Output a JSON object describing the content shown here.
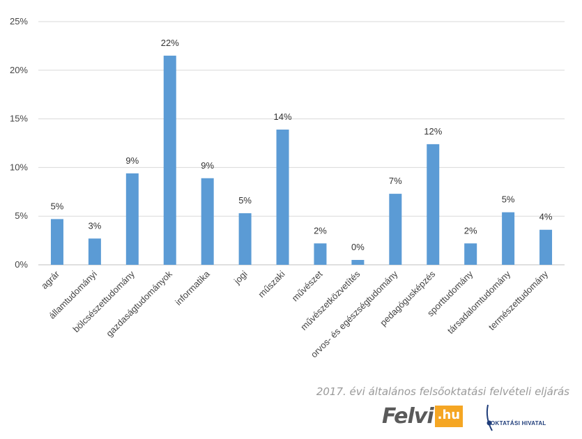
{
  "chart_data": {
    "type": "bar",
    "categories": [
      "agrár",
      "államtudományi",
      "bölcsészettudomány",
      "gazdaságtudományok",
      "informatika",
      "jogi",
      "műszaki",
      "művészet",
      "művészetközvetítés",
      "orvos- és egészségtudomány",
      "pedagógusképzés",
      "sporttudomány",
      "társadalomtudomány",
      "természettudomány"
    ],
    "values": [
      4.7,
      2.7,
      9.4,
      21.5,
      8.9,
      5.3,
      13.9,
      2.2,
      0.5,
      7.3,
      12.4,
      2.2,
      5.4,
      3.6
    ],
    "data_labels": [
      "5%",
      "3%",
      "9%",
      "22%",
      "9%",
      "5%",
      "14%",
      "2%",
      "0%",
      "7%",
      "12%",
      "2%",
      "5%",
      "4%"
    ],
    "y_ticks": [
      0,
      5,
      10,
      15,
      20,
      25
    ],
    "y_tick_labels": [
      "0%",
      "5%",
      "10%",
      "15%",
      "20%",
      "25%"
    ],
    "ylim": [
      0,
      25
    ],
    "grid": true,
    "legend": "none",
    "bar_color": "#5b9bd5"
  },
  "footer": {
    "caption": "2017. évi általános felsőoktatási felvételi eljárás",
    "felvi_text": "Felvi",
    "felvi_suffix": ".hu",
    "oh_text": "OKTATÁSI HIVATAL"
  }
}
